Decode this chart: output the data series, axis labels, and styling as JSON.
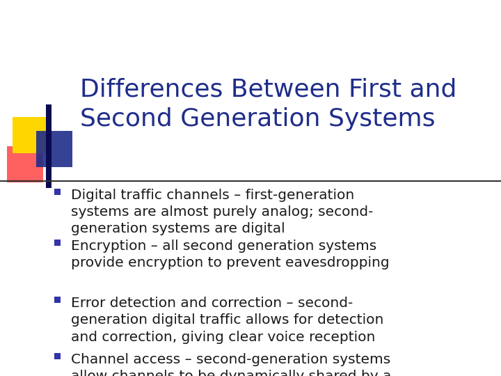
{
  "title_line1": "Differences Between First and",
  "title_line2": "Second Generation Systems",
  "title_color": "#1F2D8A",
  "bg_color": "#FFFFFF",
  "bullet_text_color": "#1A1A1A",
  "bullet_marker_color": "#3333AA",
  "bullets": [
    "Digital traffic channels – first-generation\nsystems are almost purely analog; second-\ngeneration systems are digital",
    "Encryption – all second generation systems\nprovide encryption to prevent eavesdropping",
    "Error detection and correction – second-\ngeneration digital traffic allows for detection\nand correction, giving clear voice reception",
    "Channel access – second-generation systems\nallow channels to be dynamically shared by a\nnumber of users"
  ],
  "title_font_size": 26,
  "bullet_font_size": 14.5,
  "divider_color": "#1F1F1F",
  "yellow_color": "#FFD700",
  "red_color": "#FF4444",
  "blue_color": "#1F2D8A"
}
